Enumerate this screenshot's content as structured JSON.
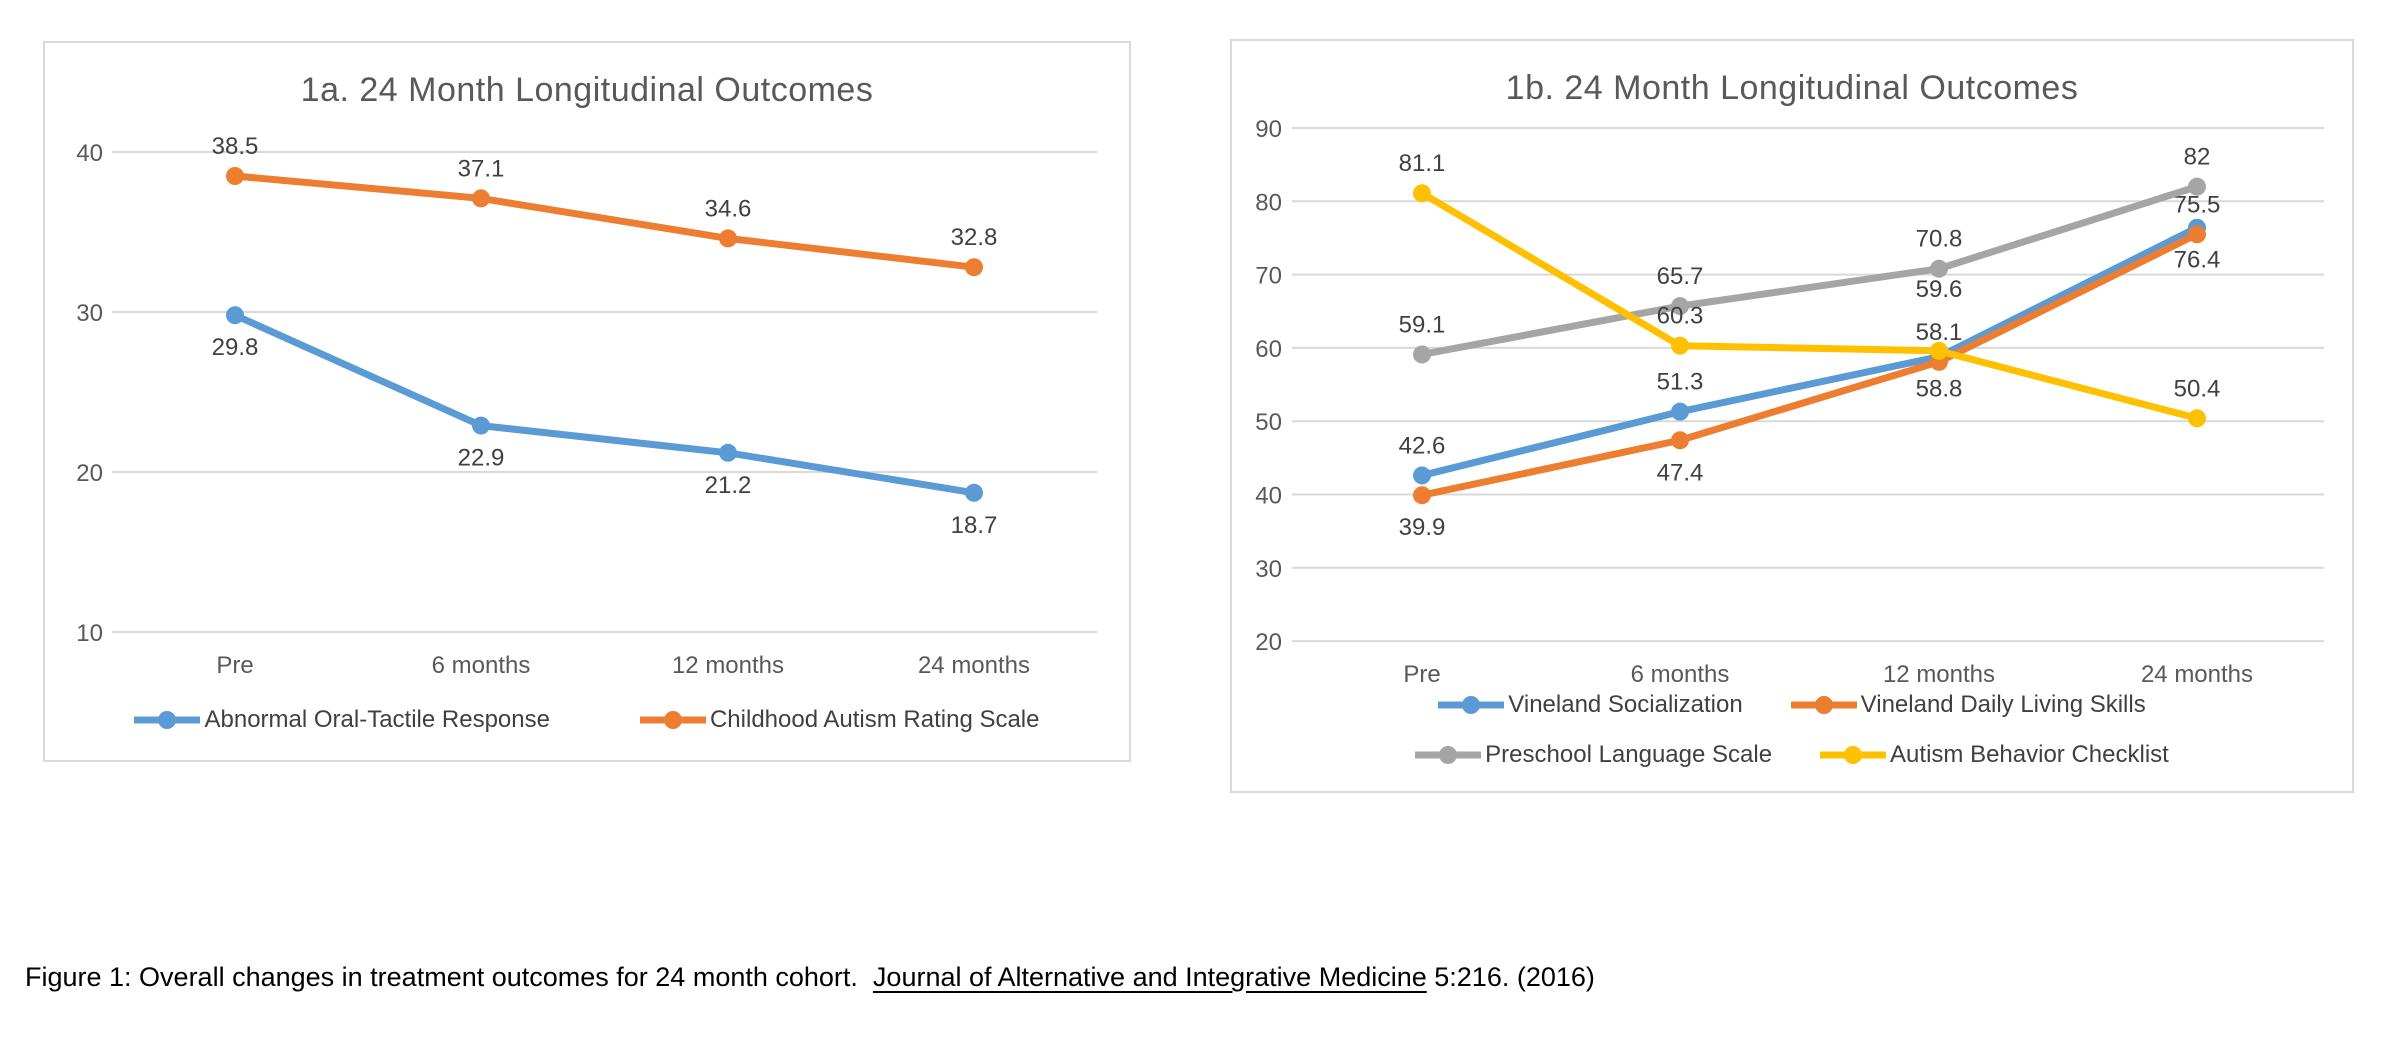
{
  "page": {
    "background": "#ffffff"
  },
  "caption": {
    "prefix": "Figure 1: Overall changes in treatment outcomes for 24 month cohort.  ",
    "journal": "Journal of Alternative and Integrative Medicine",
    "suffix": " 5:216. (2016)"
  },
  "colors": {
    "blue": "#5B9BD5",
    "orange": "#ED7D31",
    "gray": "#A5A5A5",
    "yellow": "#FFC000",
    "title_text": "#595959",
    "axis_text": "#595959",
    "data_label_text": "#404040",
    "gridline": "#D9D9D9",
    "card_border": "#D9D9D9"
  },
  "chart_data": [
    {
      "type": "line",
      "title": "1a. 24 Month Longitudinal Outcomes",
      "categories": [
        "Pre",
        "6 months",
        "12 months",
        "24 months"
      ],
      "series": [
        {
          "name": "Abnormal Oral-Tactile Response",
          "color": "#5B9BD5",
          "values": [
            29.8,
            22.9,
            21.2,
            18.7
          ],
          "label_side": [
            "below",
            "below",
            "below",
            "below"
          ]
        },
        {
          "name": "Childhood Autism Rating Scale",
          "color": "#ED7D31",
          "values": [
            38.5,
            37.1,
            34.6,
            32.8
          ],
          "label_side": [
            "above",
            "above",
            "above",
            "above"
          ]
        }
      ],
      "ylim": [
        10,
        40
      ],
      "yticks": [
        40,
        30,
        20,
        10
      ],
      "grid": true,
      "legend_position": "bottom",
      "legend_rows": [
        [
          "Abnormal Oral-Tactile Response",
          "Childhood Autism Rating Scale"
        ]
      ]
    },
    {
      "type": "line",
      "title": "1b. 24 Month Longitudinal Outcomes",
      "categories": [
        "Pre",
        "6 months",
        "12 months",
        "24 months"
      ],
      "series": [
        {
          "name": "Vineland Socialization",
          "color": "#5B9BD5",
          "values": [
            42.6,
            51.3,
            58.8,
            76.4
          ],
          "label_side": [
            "above",
            "above",
            "below",
            "below"
          ]
        },
        {
          "name": "Vineland Daily Living Skills",
          "color": "#ED7D31",
          "values": [
            39.9,
            47.4,
            58.1,
            75.5
          ],
          "label_side": [
            "below",
            "below",
            "above",
            "above"
          ]
        },
        {
          "name": "Preschool Language Scale",
          "color": "#A5A5A5",
          "values": [
            59.1,
            65.7,
            70.8,
            82
          ],
          "label_side": [
            "above",
            "above",
            "above",
            "above"
          ]
        },
        {
          "name": "Autism Behavior Checklist",
          "color": "#FFC000",
          "values": [
            81.1,
            60.3,
            59.6,
            50.4
          ],
          "label_side": [
            "above",
            "above",
            "above",
            "above"
          ],
          "label_dy": [
            null,
            null,
            -62,
            null
          ]
        }
      ],
      "ylim": [
        20,
        90
      ],
      "yticks": [
        90,
        80,
        70,
        60,
        50,
        40,
        30,
        20
      ],
      "grid": true,
      "legend_position": "bottom",
      "legend_rows": [
        [
          "Vineland Socialization",
          "Vineland Daily Living Skills"
        ],
        [
          "Preschool Language Scale",
          "Autism Behavior Checklist"
        ]
      ]
    }
  ]
}
